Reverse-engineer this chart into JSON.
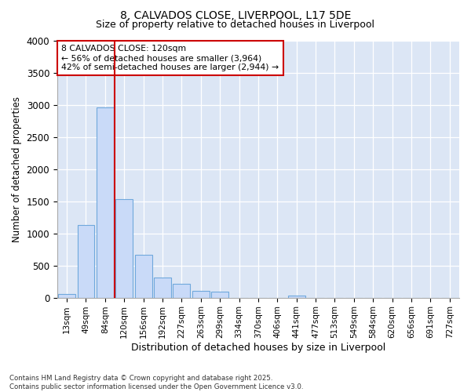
{
  "title1": "8, CALVADOS CLOSE, LIVERPOOL, L17 5DE",
  "title2": "Size of property relative to detached houses in Liverpool",
  "xlabel": "Distribution of detached houses by size in Liverpool",
  "ylabel": "Number of detached properties",
  "categories": [
    "13sqm",
    "49sqm",
    "84sqm",
    "120sqm",
    "156sqm",
    "192sqm",
    "227sqm",
    "263sqm",
    "299sqm",
    "334sqm",
    "370sqm",
    "406sqm",
    "441sqm",
    "477sqm",
    "513sqm",
    "549sqm",
    "584sqm",
    "620sqm",
    "656sqm",
    "691sqm",
    "727sqm"
  ],
  "values": [
    55,
    1130,
    2970,
    1530,
    665,
    315,
    215,
    100,
    95,
    0,
    0,
    0,
    30,
    0,
    0,
    0,
    0,
    0,
    0,
    0,
    0
  ],
  "bar_color": "#c9daf8",
  "bar_edge_color": "#6fa8dc",
  "vline_color": "#cc0000",
  "annotation_title": "8 CALVADOS CLOSE: 120sqm",
  "annotation_line1": "← 56% of detached houses are smaller (3,964)",
  "annotation_line2": "42% of semi-detached houses are larger (2,944) →",
  "annotation_box_facecolor": "white",
  "annotation_box_edgecolor": "#cc0000",
  "ylim": [
    0,
    4000
  ],
  "yticks": [
    0,
    500,
    1000,
    1500,
    2000,
    2500,
    3000,
    3500,
    4000
  ],
  "footnote1": "Contains HM Land Registry data © Crown copyright and database right 2025.",
  "footnote2": "Contains public sector information licensed under the Open Government Licence v3.0.",
  "fig_bg_color": "#ffffff",
  "plot_bg_color": "#dce6f5"
}
